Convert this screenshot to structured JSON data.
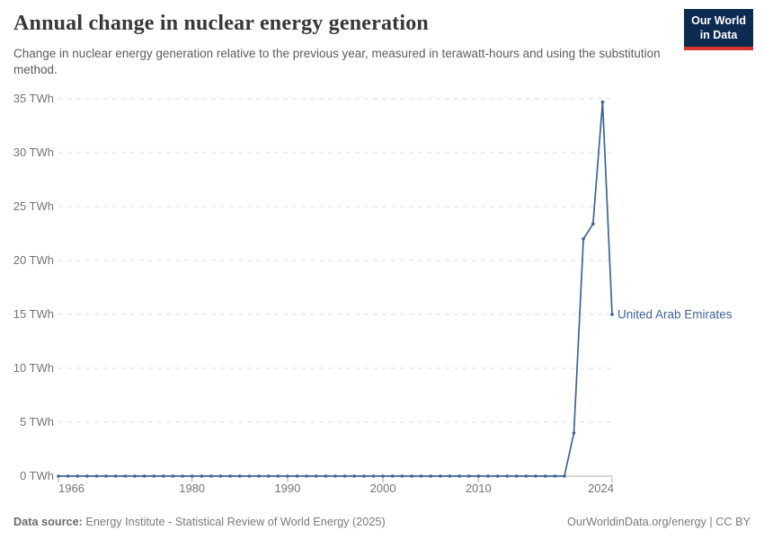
{
  "header": {
    "title": "Annual change in nuclear energy generation",
    "subtitle": "Change in nuclear energy generation relative to the previous year, measured in terawatt-hours and using the substitution method.",
    "logo": {
      "line1": "Our World",
      "line2": "in Data"
    }
  },
  "colors": {
    "series_blue": "#3e6399",
    "logo_navy": "#0d2b51",
    "logo_red": "#d8352a",
    "gridline": "#dedede",
    "axis": "#a9a9a9",
    "tick_text": "#747474"
  },
  "chart_data": {
    "type": "line",
    "title": "Annual change in nuclear energy generation",
    "xlabel": "",
    "ylabel": "",
    "y_tick_suffix": " TWh",
    "xlim": [
      1966,
      2024
    ],
    "ylim": [
      0,
      35
    ],
    "grid": "dashed-horizontal",
    "legend_position": "end-of-line-label",
    "x_ticks": [
      1966,
      1980,
      1990,
      2000,
      2010,
      2024
    ],
    "y_ticks": [
      0,
      5,
      10,
      15,
      20,
      25,
      30,
      35
    ],
    "x": [
      1966,
      1967,
      1968,
      1969,
      1970,
      1971,
      1972,
      1973,
      1974,
      1975,
      1976,
      1977,
      1978,
      1979,
      1980,
      1981,
      1982,
      1983,
      1984,
      1985,
      1986,
      1987,
      1988,
      1989,
      1990,
      1991,
      1992,
      1993,
      1994,
      1995,
      1996,
      1997,
      1998,
      1999,
      2000,
      2001,
      2002,
      2003,
      2004,
      2005,
      2006,
      2007,
      2008,
      2009,
      2010,
      2011,
      2012,
      2013,
      2014,
      2015,
      2016,
      2017,
      2018,
      2019,
      2020,
      2021,
      2022,
      2023,
      2024
    ],
    "series": [
      {
        "name": "United Arab Emirates",
        "color": "#3e6399",
        "values": [
          0,
          0,
          0,
          0,
          0,
          0,
          0,
          0,
          0,
          0,
          0,
          0,
          0,
          0,
          0,
          0,
          0,
          0,
          0,
          0,
          0,
          0,
          0,
          0,
          0,
          0,
          0,
          0,
          0,
          0,
          0,
          0,
          0,
          0,
          0,
          0,
          0,
          0,
          0,
          0,
          0,
          0,
          0,
          0,
          0,
          0,
          0,
          0,
          0,
          0,
          0,
          0,
          0,
          0,
          4,
          22,
          23.4,
          34.7,
          15
        ]
      }
    ]
  },
  "footer": {
    "source_label": "Data source:",
    "source_text": "Energy Institute - Statistical Review of World Energy (2025)",
    "credit": "OurWorldinData.org/energy | CC BY"
  }
}
